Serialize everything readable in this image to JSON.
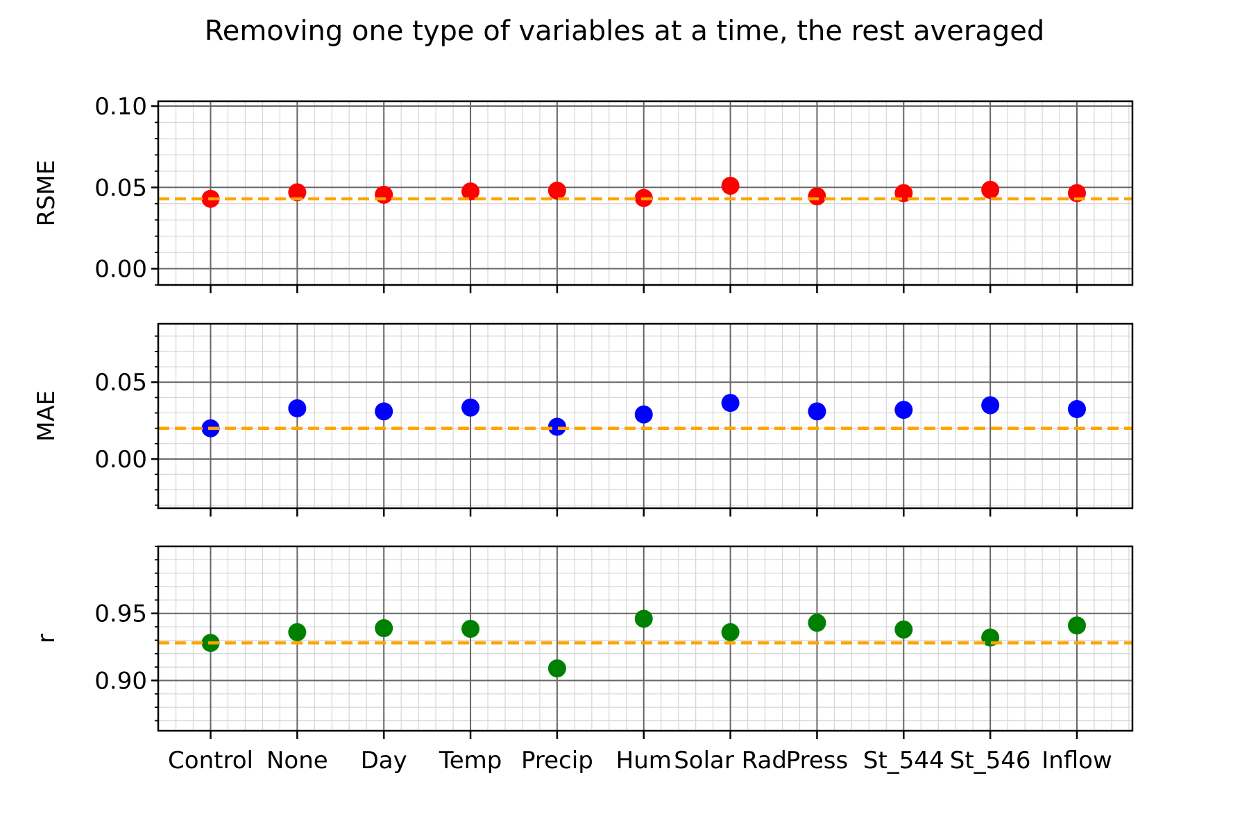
{
  "chart_data": {
    "type": "scatter",
    "title": "Removing one type of variables at a time, the rest averaged",
    "categories": [
      "Control",
      "None",
      "Day",
      "Temp",
      "Precip",
      "Hum",
      "Solar Rad",
      "Press",
      "St_544",
      "St_546",
      "Inflow"
    ],
    "grid": "major and minor",
    "panels": [
      {
        "ylabel": "RSME",
        "color": "#ff0000",
        "ylim": [
          -0.01,
          0.103
        ],
        "yticks": [
          "0.00",
          "0.05",
          "0.10"
        ],
        "ytick_values": [
          0.0,
          0.05,
          0.1
        ],
        "values": [
          0.043,
          0.047,
          0.0455,
          0.0475,
          0.048,
          0.0435,
          0.051,
          0.0445,
          0.0465,
          0.0485,
          0.0465
        ],
        "baseline": 0.043,
        "baseline_color": "#ffa500"
      },
      {
        "ylabel": "MAE",
        "color": "#0000ff",
        "ylim": [
          -0.032,
          0.088
        ],
        "yticks": [
          "0.00",
          "0.05"
        ],
        "ytick_values": [
          0.0,
          0.05
        ],
        "values": [
          0.02,
          0.033,
          0.031,
          0.0335,
          0.021,
          0.029,
          0.0365,
          0.031,
          0.032,
          0.035,
          0.0325
        ],
        "baseline": 0.02,
        "baseline_color": "#ffa500"
      },
      {
        "ylabel": "r",
        "color": "#008000",
        "ylim": [
          0.8625,
          1.0
        ],
        "yticks": [
          "0.90",
          "0.95"
        ],
        "ytick_values": [
          0.9,
          0.95
        ],
        "values": [
          0.928,
          0.936,
          0.939,
          0.9385,
          0.909,
          0.946,
          0.936,
          0.943,
          0.938,
          0.932,
          0.941
        ],
        "baseline": 0.928,
        "baseline_color": "#ffa500"
      }
    ]
  }
}
